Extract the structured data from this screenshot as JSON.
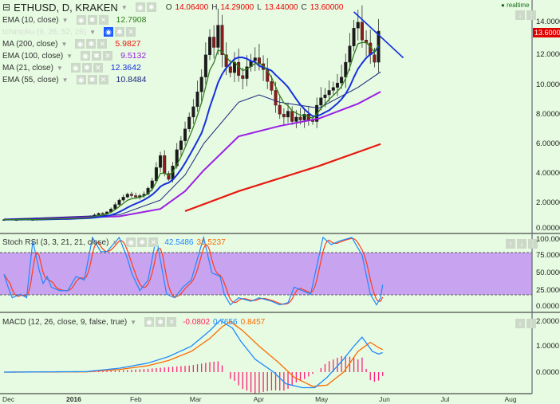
{
  "header": {
    "symbol": "ETHUSD, D, KRAKEN",
    "o_label": "O",
    "o": "14.06400",
    "h_label": "H",
    "h": "14.29000",
    "l_label": "L",
    "l": "13.44000",
    "c_label": "C",
    "c": "13.60000",
    "realtime": "realtime"
  },
  "indicators": [
    {
      "label": "EMA (10, close)",
      "value": "12.7908",
      "color": "#2e7d1a"
    },
    {
      "label": "Ichimoku (9, 26, 52, 26)",
      "value": "",
      "color": "#cfd8cf"
    },
    {
      "label": "MA (200, close)",
      "value": "5.9827",
      "color": "#e8190f"
    },
    {
      "label": "EMA (100, close)",
      "value": "9.5132",
      "color": "#9a1ee6"
    },
    {
      "label": "MA (21, close)",
      "value": "12.3642",
      "color": "#1530e0"
    },
    {
      "label": "EMA (55, close)",
      "value": "10.8484",
      "color": "#1a237e"
    }
  ],
  "stoch": {
    "label": "Stoch RSI (3, 3, 21, 21, close)",
    "k": "42.5486",
    "d": "31.5237"
  },
  "macd": {
    "label": "MACD (12, 26, close, 9, false, true)",
    "hist": "-0.0802",
    "macd": "0.7656",
    "signal": "0.8457"
  },
  "price_axis": [
    "14.00000",
    "12.00000",
    "10.00000",
    "8.00000",
    "6.00000",
    "4.00000",
    "2.00000",
    "0.00000"
  ],
  "price_tag": "13.60000",
  "stoch_axis": [
    "100.0000",
    "75.0000",
    "50.0000",
    "25.0000",
    "0.0000"
  ],
  "macd_axis": [
    "2.0000",
    "1.0000",
    "0.0000"
  ],
  "x_axis": [
    "Dec",
    "2016",
    "Feb",
    "Mar",
    "Apr",
    "May",
    "Jun",
    "Jul",
    "Aug"
  ],
  "chart_data": {
    "type": "candlestick",
    "title": "ETHUSD, D, KRAKEN",
    "x_unit": "days since Dec 1 2015",
    "ylim": [
      0,
      15.5
    ],
    "closes_every_2_days": [
      0.88,
      0.9,
      0.86,
      0.87,
      0.9,
      0.92,
      0.88,
      0.86,
      0.9,
      0.93,
      0.91,
      0.95,
      0.94,
      0.96,
      0.93,
      0.95,
      0.97,
      0.99,
      0.98,
      1.0,
      1.05,
      1.1,
      1.2,
      1.3,
      1.25,
      1.4,
      1.6,
      1.9,
      2.2,
      2.4,
      2.6,
      2.5,
      2.4,
      2.5,
      2.6,
      3.0,
      3.5,
      4.4,
      5.2,
      4.0,
      3.6,
      4.5,
      5.6,
      6.2,
      7.0,
      7.8,
      8.5,
      9.5,
      10.5,
      12.0,
      13.2,
      12.5,
      14.0,
      12.0,
      11.2,
      10.8,
      11.5,
      10.6,
      10.4,
      11.2,
      11.6,
      11.8,
      11.4,
      11.0,
      10.2,
      9.6,
      8.6,
      8.0,
      7.8,
      8.2,
      7.5,
      7.8,
      7.6,
      8.0,
      7.6,
      7.5,
      8.6,
      9.1,
      9.3,
      9.6,
      9.8,
      10.1,
      10.5,
      11.5,
      12.6,
      13.8,
      14.2,
      13.0,
      12.8,
      12.0,
      11.5,
      13.6
    ],
    "ma200": [
      [
        88,
        1.45
      ],
      [
        114,
        2.8
      ],
      [
        153,
        4.5
      ],
      [
        183,
        5.98
      ]
    ],
    "ema100": [
      [
        0,
        0.9
      ],
      [
        56,
        1.1
      ],
      [
        76,
        1.6
      ],
      [
        88,
        2.8
      ],
      [
        97,
        4.2
      ],
      [
        114,
        6.5
      ],
      [
        134,
        7.2
      ],
      [
        153,
        7.7
      ],
      [
        172,
        8.7
      ],
      [
        183,
        9.51
      ]
    ],
    "ema55": [
      [
        0,
        0.9
      ],
      [
        56,
        1.2
      ],
      [
        76,
        2.2
      ],
      [
        88,
        3.9
      ],
      [
        97,
        6
      ],
      [
        114,
        8.8
      ],
      [
        124,
        9.3
      ],
      [
        134,
        8.8
      ],
      [
        153,
        8.4
      ],
      [
        172,
        9.8
      ],
      [
        183,
        10.85
      ]
    ],
    "trendline": [
      [
        170,
        14.9
      ],
      [
        194,
        11.8
      ]
    ],
    "stoch_k": [
      [
        0,
        48
      ],
      [
        2,
        30
      ],
      [
        4,
        15
      ],
      [
        8,
        20
      ],
      [
        11,
        15
      ],
      [
        14,
        95
      ],
      [
        17,
        55
      ],
      [
        19,
        35
      ],
      [
        21,
        45
      ],
      [
        23,
        30
      ],
      [
        27,
        25
      ],
      [
        31,
        25
      ],
      [
        35,
        45
      ],
      [
        39,
        40
      ],
      [
        43,
        100
      ],
      [
        47,
        80
      ],
      [
        50,
        80
      ],
      [
        56,
        100
      ],
      [
        60,
        70
      ],
      [
        62,
        50
      ],
      [
        66,
        25
      ],
      [
        70,
        40
      ],
      [
        74,
        100
      ],
      [
        79,
        20
      ],
      [
        83,
        15
      ],
      [
        87,
        30
      ],
      [
        91,
        40
      ],
      [
        97,
        100
      ],
      [
        101,
        50
      ],
      [
        105,
        45
      ],
      [
        107,
        20
      ],
      [
        110,
        5
      ],
      [
        114,
        15
      ],
      [
        120,
        10
      ],
      [
        124,
        15
      ],
      [
        130,
        10
      ],
      [
        134,
        5
      ],
      [
        138,
        8
      ],
      [
        141,
        30
      ],
      [
        145,
        25
      ],
      [
        149,
        20
      ],
      [
        155,
        100
      ],
      [
        159,
        90
      ],
      [
        163,
        95
      ],
      [
        169,
        100
      ],
      [
        174,
        75
      ],
      [
        178,
        20
      ],
      [
        181,
        5
      ],
      [
        183,
        15
      ],
      [
        184.5,
        42.5
      ]
    ],
    "stoch_bands": [
      25,
      75
    ],
    "macd_line": [
      [
        0,
        0
      ],
      [
        40,
        0.02
      ],
      [
        56,
        0.15
      ],
      [
        70,
        0.35
      ],
      [
        80,
        0.6
      ],
      [
        91,
        1.0
      ],
      [
        100,
        1.6
      ],
      [
        105,
        2.0
      ],
      [
        111,
        1.7
      ],
      [
        115,
        1.2
      ],
      [
        122,
        0.5
      ],
      [
        131,
        0.0
      ],
      [
        137,
        -0.45
      ],
      [
        145,
        -0.6
      ],
      [
        151,
        -0.6
      ],
      [
        157,
        -0.2
      ],
      [
        165,
        0.5
      ],
      [
        170,
        1.0
      ],
      [
        174,
        1.35
      ],
      [
        179,
        0.8
      ],
      [
        182,
        0.7
      ],
      [
        184.5,
        0.77
      ]
    ],
    "signal_line": [
      [
        0,
        0
      ],
      [
        40,
        0.01
      ],
      [
        56,
        0.1
      ],
      [
        70,
        0.25
      ],
      [
        80,
        0.45
      ],
      [
        91,
        0.8
      ],
      [
        100,
        1.3
      ],
      [
        106,
        1.75
      ],
      [
        110,
        1.95
      ],
      [
        116,
        1.6
      ],
      [
        124,
        1.0
      ],
      [
        133,
        0.4
      ],
      [
        141,
        -0.2
      ],
      [
        150,
        -0.55
      ],
      [
        157,
        -0.5
      ],
      [
        165,
        0.0
      ],
      [
        172,
        0.8
      ],
      [
        178,
        1.15
      ],
      [
        182,
        0.95
      ],
      [
        184.5,
        0.85
      ]
    ]
  }
}
